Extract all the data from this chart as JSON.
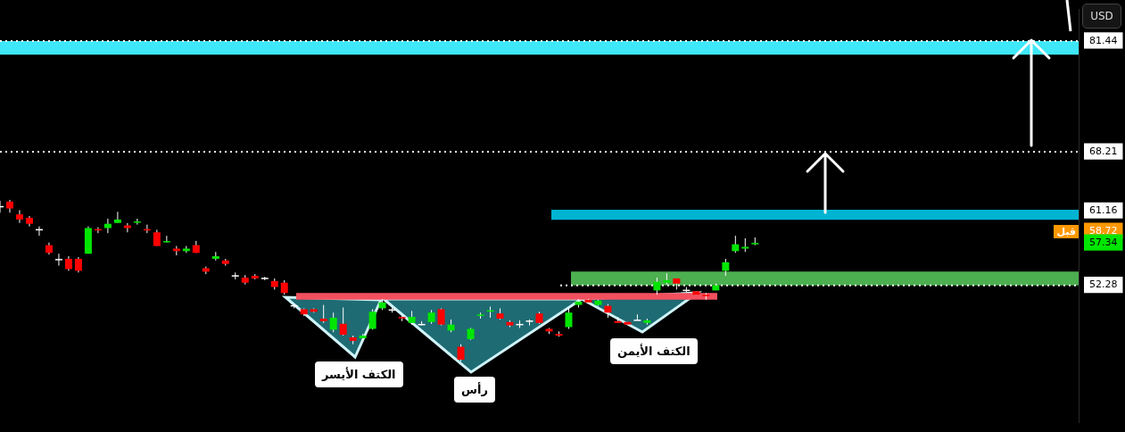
{
  "chart_data": {
    "type": "candlestick",
    "ylabel": "USD",
    "categories": [
      null,
      null,
      null,
      null,
      null,
      null,
      null,
      null,
      null,
      null,
      null,
      null,
      null,
      null,
      null,
      null,
      null,
      null,
      null,
      null,
      null,
      null,
      null,
      null,
      null,
      null,
      null,
      null,
      null,
      null,
      null,
      null,
      null,
      null,
      null,
      null,
      null,
      null,
      null,
      null,
      null,
      null,
      null,
      null,
      null,
      null,
      null,
      null,
      null,
      null,
      null,
      null,
      null,
      null,
      null,
      null,
      null,
      null,
      null,
      null,
      null,
      null,
      null,
      null,
      null,
      null,
      null,
      null,
      null,
      null,
      null,
      null,
      null,
      null,
      null,
      null,
      null,
      null,
      null,
      null,
      null,
      null,
      null,
      null,
      null,
      null,
      null,
      null,
      null,
      null,
      null,
      null,
      null,
      null,
      null,
      null,
      null,
      null,
      null,
      null,
      null,
      null,
      null,
      null,
      null,
      null,
      null,
      null,
      null,
      null,
      null
    ],
    "ohlc": [
      [
        61.66,
        62.37,
        60.94,
        61.66
      ],
      [
        62.27,
        62.47,
        60.94,
        61.45
      ],
      [
        60.74,
        61.25,
        59.72,
        60.13
      ],
      [
        60.33,
        60.54,
        59.31,
        59.62
      ],
      [
        58.91,
        59.31,
        58.19,
        58.91
      ],
      [
        57.07,
        57.38,
        55.95,
        56.15
      ],
      [
        55.34,
        56.05,
        54.62,
        55.34
      ],
      [
        55.44,
        55.75,
        54.01,
        54.22
      ],
      [
        55.44,
        55.64,
        53.81,
        54.01
      ],
      [
        56.05,
        59.31,
        56.05,
        59.11
      ],
      [
        58.91,
        59.21,
        58.5,
        58.8
      ],
      [
        59.11,
        60.23,
        58.5,
        59.62
      ],
      [
        59.72,
        61.05,
        59.72,
        60.13
      ],
      [
        59.42,
        59.72,
        58.6,
        59.11
      ],
      [
        59.77,
        60.23,
        59.52,
        59.82
      ],
      [
        58.91,
        59.52,
        58.5,
        58.8
      ],
      [
        58.6,
        58.91,
        56.97,
        56.97
      ],
      [
        57.38,
        58.19,
        57.38,
        57.48
      ],
      [
        56.66,
        56.97,
        55.85,
        56.36
      ],
      [
        56.36,
        56.97,
        56.15,
        56.66
      ],
      [
        57.07,
        57.58,
        56.15,
        56.15
      ],
      [
        54.32,
        54.52,
        53.61,
        53.91
      ],
      [
        55.44,
        56.26,
        55.24,
        55.75
      ],
      [
        55.24,
        55.44,
        54.62,
        54.83
      ],
      [
        53.4,
        53.81,
        52.99,
        53.4
      ],
      [
        53.2,
        53.5,
        52.38,
        52.59
      ],
      [
        53.4,
        53.61,
        52.99,
        53.1
      ],
      [
        53.1,
        53.3,
        52.89,
        53.1
      ],
      [
        52.79,
        53.1,
        51.77,
        52.08
      ],
      [
        52.59,
        52.89,
        51.16,
        51.36
      ],
      [
        49.83,
        50.04,
        49.53,
        49.83
      ],
      [
        49.43,
        49.53,
        48.61,
        48.81
      ],
      [
        49.43,
        49.53,
        49.02,
        49.12
      ],
      [
        48.3,
        49.94,
        47.79,
        48.0
      ],
      [
        46.98,
        49.02,
        46.67,
        48.41
      ],
      [
        47.69,
        49.63,
        46.27,
        46.37
      ],
      [
        46.06,
        46.27,
        45.25,
        45.65
      ],
      [
        45.96,
        46.47,
        45.76,
        46.27
      ],
      [
        47.08,
        49.43,
        46.98,
        49.12
      ],
      [
        49.53,
        50.65,
        49.33,
        50.24
      ],
      [
        49.33,
        49.63,
        49.02,
        49.33
      ],
      [
        48.41,
        48.71,
        48.0,
        48.3
      ],
      [
        47.79,
        49.22,
        47.59,
        48.51
      ],
      [
        47.59,
        48.0,
        47.49,
        47.59
      ],
      [
        47.9,
        49.33,
        47.69,
        49.02
      ],
      [
        49.43,
        49.53,
        47.49,
        47.59
      ],
      [
        46.88,
        48.2,
        46.67,
        47.59
      ],
      [
        44.94,
        45.25,
        43.21,
        43.41
      ],
      [
        45.86,
        47.18,
        45.76,
        47.08
      ],
      [
        48.61,
        49.02,
        48.3,
        48.71
      ],
      [
        49.12,
        49.73,
        48.41,
        49.22
      ],
      [
        48.92,
        49.53,
        48.2,
        48.3
      ],
      [
        47.9,
        48.1,
        47.29,
        47.49
      ],
      [
        47.59,
        48.1,
        47.18,
        47.59
      ],
      [
        48.0,
        48.2,
        47.49,
        48.0
      ],
      [
        48.92,
        49.12,
        47.69,
        47.79
      ],
      [
        47.08,
        47.18,
        46.47,
        46.77
      ],
      [
        46.47,
        46.77,
        46.16,
        46.27
      ],
      [
        47.29,
        49.53,
        47.08,
        49.02
      ],
      [
        49.94,
        50.65,
        49.63,
        50.34
      ],
      [
        50.55,
        50.65,
        50.14,
        50.24
      ],
      [
        49.94,
        50.55,
        49.83,
        50.45
      ],
      [
        49.83,
        50.04,
        48.41,
        49.02
      ],
      [
        48.0,
        48.51,
        47.79,
        47.79
      ],
      [
        47.9,
        47.9,
        47.59,
        47.59
      ],
      [
        48.1,
        48.81,
        48.1,
        48.1
      ],
      [
        47.79,
        48.3,
        47.59,
        48.1
      ],
      [
        51.67,
        53.2,
        51.16,
        52.69
      ],
      [
        52.59,
        53.71,
        52.38,
        52.89
      ],
      [
        53.1,
        53.1,
        51.77,
        52.48
      ],
      [
        51.67,
        52.08,
        51.46,
        51.67
      ],
      [
        51.57,
        51.57,
        51.16,
        51.16
      ],
      [
        51.06,
        51.36,
        50.55,
        50.95
      ],
      [
        51.67,
        52.48,
        51.67,
        52.28
      ],
      [
        54.01,
        55.44,
        53.4,
        55.03
      ],
      [
        56.36,
        58.19,
        56.15,
        57.17
      ],
      [
        56.66,
        57.89,
        56.26,
        56.87
      ],
      [
        57.17,
        57.99,
        57.07,
        57.34
      ],
      null,
      null,
      null,
      null,
      null,
      null,
      null,
      null,
      null,
      null,
      null,
      null,
      null,
      null,
      null,
      null,
      null,
      null,
      null,
      null,
      null,
      null,
      null,
      null,
      null,
      null,
      null,
      null,
      null,
      null,
      null,
      null,
      null
    ],
    "ylim": [
      35.9,
      85.2
    ],
    "yticks": [
      81.44,
      68.21,
      61.16,
      58.72,
      57.34,
      52.28
    ],
    "tick_labels": "y",
    "legend": false,
    "ref_lines": [
      {
        "axis": "y",
        "value": 81.44,
        "color": "#ffffff",
        "line_style": "dotted"
      },
      {
        "axis": "y",
        "value": 68.21,
        "color": "#ffffff",
        "line_style": "dotted"
      },
      {
        "axis": "y",
        "value": 52.28,
        "color": "#ffffff",
        "line_style": "dotted"
      }
    ],
    "bands": [
      {
        "axis": "y",
        "from": 79.8,
        "to": 81.44,
        "color": "#3ee8f8"
      },
      {
        "axis": "y",
        "from": 60.1,
        "to": 61.3,
        "color": "#00b4d2"
      },
      {
        "axis": "y",
        "from": 52.28,
        "to": 53.91,
        "color": "#4caf50"
      },
      {
        "axis": "y",
        "from": 50.55,
        "to": 51.36,
        "color": "#f2505e"
      }
    ],
    "annotations": [
      "الكتف الأيسر",
      "رأس",
      "الكتف الأيمن",
      {
        "text": "قبل",
        "y": 58.72
      }
    ]
  }
}
